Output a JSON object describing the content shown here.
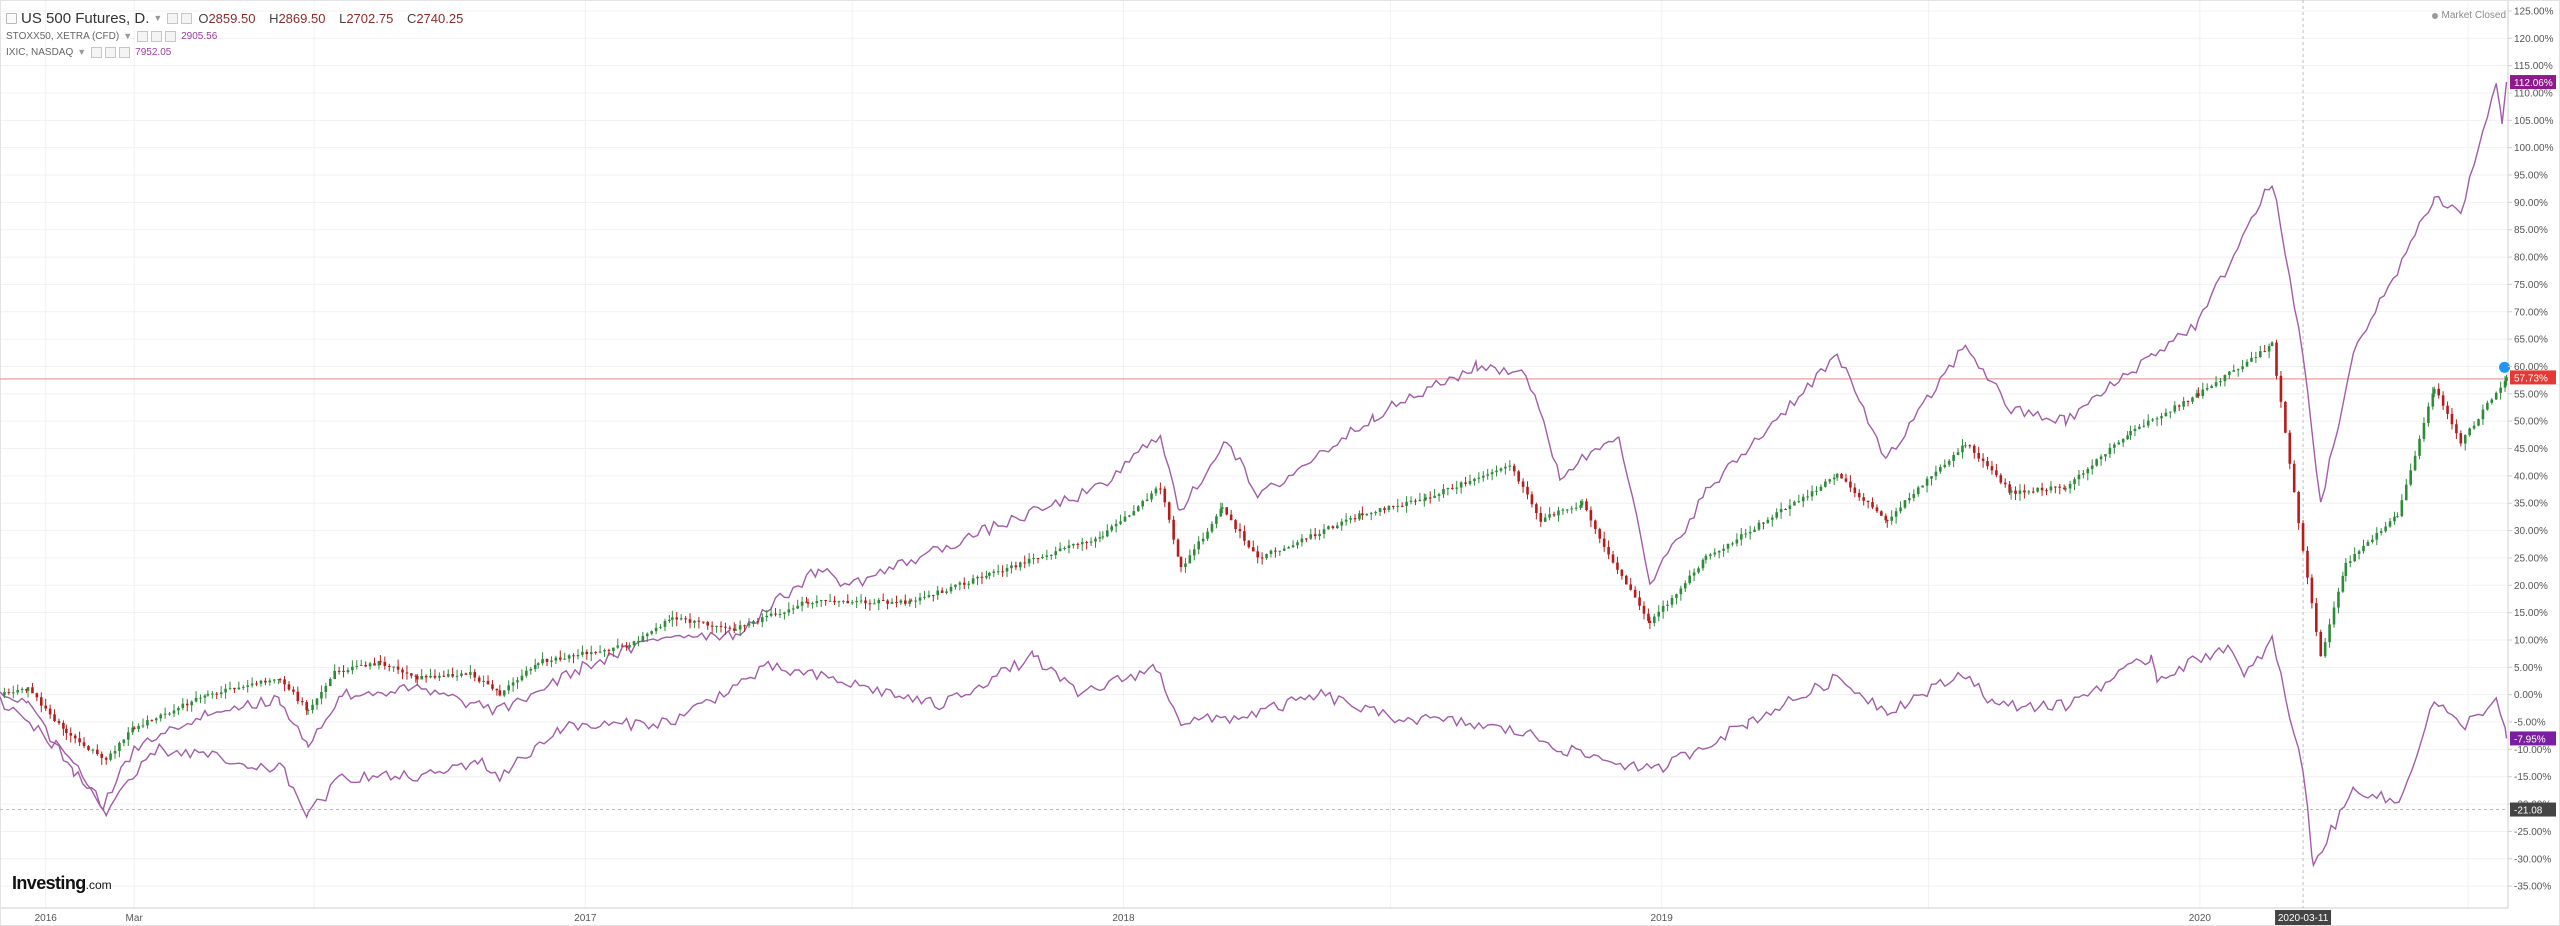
{
  "legend": {
    "main": {
      "title": "US 500 Futures, D",
      "dot": ".",
      "open_label": "O",
      "open": "2859.50",
      "high_label": "H",
      "high": "2869.50",
      "low_label": "L",
      "low": "2702.75",
      "close_label": "C",
      "close": "2740.25"
    },
    "compare": [
      {
        "label": "STOXX50, XETRA (CFD)",
        "value": "2905.56"
      },
      {
        "label": "IXIC, NASDAQ",
        "value": "7952.05"
      }
    ]
  },
  "status": {
    "market": "Market Closed"
  },
  "brand": {
    "name": "Investing",
    "domain": ".com"
  },
  "colors": {
    "candle_up": "#2e8b3a",
    "candle_down": "#b71c1c",
    "compare_line": "#a35ca8",
    "price_line": "#e6a0a0",
    "spx_badge": "#e53935",
    "compare_badge": "#8e1a8c",
    "stoxx_badge": "#7b1fa2",
    "crosshair_badge": "#444444",
    "alert_dot": "#2196f3"
  },
  "chart_data": {
    "type": "line",
    "y_axis": {
      "unit": "%",
      "range": [
        -39,
        127
      ],
      "ticks": [
        125,
        120,
        115,
        110,
        105,
        100,
        95,
        90,
        85,
        80,
        75,
        70,
        65,
        60,
        55,
        50,
        45,
        40,
        35,
        30,
        25,
        20,
        15,
        10,
        5,
        0,
        -5,
        -10,
        -15,
        -20,
        -25,
        -30,
        -35
      ]
    },
    "x_axis": {
      "type": "date",
      "range": [
        "2015-12-01",
        "2020-07-28"
      ],
      "ticks": [
        {
          "date": "2016-01-01",
          "label": "2016"
        },
        {
          "date": "2016-03-01",
          "label": "Mar"
        },
        {
          "date": "2017-01-01",
          "label": "2017"
        },
        {
          "date": "2018-01-01",
          "label": "2018"
        },
        {
          "date": "2019-01-01",
          "label": "2019"
        },
        {
          "date": "2020-01-01",
          "label": "2020"
        }
      ],
      "minor_grid_dates": [
        "2016-07-01",
        "2017-07-01",
        "2018-07-01",
        "2019-07-01",
        "2020-07-01"
      ],
      "crosshair": {
        "date": "2020-03-11",
        "label": "2020-03-11"
      }
    },
    "crosshair_y": {
      "value": -21.0,
      "label": "-21.08"
    },
    "price_line": {
      "value": 57.73,
      "label": "57.73%"
    },
    "grid": true,
    "series": [
      {
        "name": "US 500 Futures",
        "style": "candlestick",
        "last_label": "57.73%",
        "points": [
          [
            "2015-12-01",
            0
          ],
          [
            "2015-12-20",
            1
          ],
          [
            "2016-01-15",
            -7
          ],
          [
            "2016-02-11",
            -12
          ],
          [
            "2016-03-01",
            -6
          ],
          [
            "2016-04-20",
            0
          ],
          [
            "2016-06-08",
            3
          ],
          [
            "2016-06-27",
            -3
          ],
          [
            "2016-07-15",
            4
          ],
          [
            "2016-08-15",
            6
          ],
          [
            "2016-09-09",
            3
          ],
          [
            "2016-10-15",
            4
          ],
          [
            "2016-11-04",
            0
          ],
          [
            "2016-11-30",
            6
          ],
          [
            "2017-01-31",
            9
          ],
          [
            "2017-03-01",
            14
          ],
          [
            "2017-04-13",
            12
          ],
          [
            "2017-06-01",
            17
          ],
          [
            "2017-08-10",
            17
          ],
          [
            "2017-10-02",
            22
          ],
          [
            "2017-12-18",
            29
          ],
          [
            "2018-01-26",
            38
          ],
          [
            "2018-02-09",
            23
          ],
          [
            "2018-03-09",
            34
          ],
          [
            "2018-04-02",
            25
          ],
          [
            "2018-06-12",
            33
          ],
          [
            "2018-07-25",
            36
          ],
          [
            "2018-09-20",
            42
          ],
          [
            "2018-10-11",
            32
          ],
          [
            "2018-11-08",
            35
          ],
          [
            "2018-11-23",
            27
          ],
          [
            "2018-12-24",
            13
          ],
          [
            "2019-01-31",
            25
          ],
          [
            "2019-04-30",
            40
          ],
          [
            "2019-06-03",
            32
          ],
          [
            "2019-07-26",
            46
          ],
          [
            "2019-08-26",
            37
          ],
          [
            "2019-10-02",
            38
          ],
          [
            "2019-11-15",
            48
          ],
          [
            "2019-12-31",
            55
          ],
          [
            "2020-02-19",
            64
          ],
          [
            "2020-03-11",
            26
          ],
          [
            "2020-03-23",
            7
          ],
          [
            "2020-04-09",
            24
          ],
          [
            "2020-05-14",
            33
          ],
          [
            "2020-06-08",
            56
          ],
          [
            "2020-06-26",
            46
          ],
          [
            "2020-07-27",
            58
          ]
        ]
      },
      {
        "name": "IXIC, NASDAQ",
        "style": "line",
        "last_label": "112.06%",
        "points": [
          [
            "2015-12-01",
            1
          ],
          [
            "2015-12-20",
            -2
          ],
          [
            "2016-01-20",
            -14
          ],
          [
            "2016-02-09",
            -20
          ],
          [
            "2016-03-01",
            -10
          ],
          [
            "2016-04-20",
            -3
          ],
          [
            "2016-06-08",
            -1
          ],
          [
            "2016-06-27",
            -9
          ],
          [
            "2016-07-20",
            0
          ],
          [
            "2016-09-09",
            1
          ],
          [
            "2016-11-04",
            -3
          ],
          [
            "2016-12-30",
            5
          ],
          [
            "2017-02-28",
            11
          ],
          [
            "2017-04-13",
            11
          ],
          [
            "2017-06-08",
            23
          ],
          [
            "2017-06-29",
            20
          ],
          [
            "2017-09-29",
            30
          ],
          [
            "2017-12-18",
            38
          ],
          [
            "2018-01-26",
            48
          ],
          [
            "2018-02-08",
            33
          ],
          [
            "2018-03-12",
            47
          ],
          [
            "2018-04-02",
            36
          ],
          [
            "2018-06-20",
            51
          ],
          [
            "2018-08-29",
            60
          ],
          [
            "2018-10-01",
            59
          ],
          [
            "2018-10-24",
            40
          ],
          [
            "2018-12-03",
            48
          ],
          [
            "2018-12-24",
            20
          ],
          [
            "2019-01-31",
            37
          ],
          [
            "2019-04-30",
            62
          ],
          [
            "2019-06-03",
            43
          ],
          [
            "2019-07-26",
            64
          ],
          [
            "2019-08-26",
            52
          ],
          [
            "2019-10-02",
            50
          ],
          [
            "2019-11-29",
            62
          ],
          [
            "2019-12-31",
            68
          ],
          [
            "2020-02-19",
            94
          ],
          [
            "2020-03-11",
            62
          ],
          [
            "2020-03-23",
            35
          ],
          [
            "2020-04-14",
            62
          ],
          [
            "2020-06-08",
            91
          ],
          [
            "2020-06-26",
            88
          ],
          [
            "2020-07-20",
            112
          ],
          [
            "2020-07-24",
            104
          ],
          [
            "2020-07-27",
            112
          ]
        ]
      },
      {
        "name": "STOXX50, XETRA (CFD)",
        "style": "line",
        "last_label": "-7.95%",
        "points": [
          [
            "2015-12-01",
            -1
          ],
          [
            "2015-12-15",
            -4
          ],
          [
            "2016-01-20",
            -12
          ],
          [
            "2016-02-11",
            -22
          ],
          [
            "2016-03-15",
            -10
          ],
          [
            "2016-04-20",
            -11
          ],
          [
            "2016-05-20",
            -14
          ],
          [
            "2016-06-08",
            -13
          ],
          [
            "2016-06-27",
            -22
          ],
          [
            "2016-07-20",
            -15
          ],
          [
            "2016-09-15",
            -15
          ],
          [
            "2016-10-20",
            -12
          ],
          [
            "2016-11-04",
            -15
          ],
          [
            "2016-12-15",
            -6
          ],
          [
            "2017-02-28",
            -5
          ],
          [
            "2017-05-05",
            5
          ],
          [
            "2017-06-15",
            3
          ],
          [
            "2017-08-29",
            -2
          ],
          [
            "2017-11-01",
            7
          ],
          [
            "2017-12-01",
            0
          ],
          [
            "2018-01-23",
            5
          ],
          [
            "2018-02-09",
            -5
          ],
          [
            "2018-03-23",
            -4
          ],
          [
            "2018-05-15",
            0
          ],
          [
            "2018-06-28",
            -4
          ],
          [
            "2018-08-15",
            -5
          ],
          [
            "2018-10-01",
            -7
          ],
          [
            "2018-10-26",
            -10
          ],
          [
            "2018-12-27",
            -14
          ],
          [
            "2019-03-01",
            -5
          ],
          [
            "2019-04-30",
            3
          ],
          [
            "2019-06-03",
            -3
          ],
          [
            "2019-07-26",
            4
          ],
          [
            "2019-08-15",
            -2
          ],
          [
            "2019-10-02",
            -2
          ],
          [
            "2019-11-29",
            7
          ],
          [
            "2019-12-03",
            3
          ],
          [
            "2020-01-20",
            9
          ],
          [
            "2020-01-31",
            3
          ],
          [
            "2020-02-19",
            10
          ],
          [
            "2020-03-11",
            -14
          ],
          [
            "2020-03-18",
            -31
          ],
          [
            "2020-04-15",
            -17
          ],
          [
            "2020-05-15",
            -20
          ],
          [
            "2020-06-08",
            -1
          ],
          [
            "2020-06-26",
            -6
          ],
          [
            "2020-07-20",
            -1
          ],
          [
            "2020-07-27",
            -8
          ]
        ]
      }
    ]
  }
}
